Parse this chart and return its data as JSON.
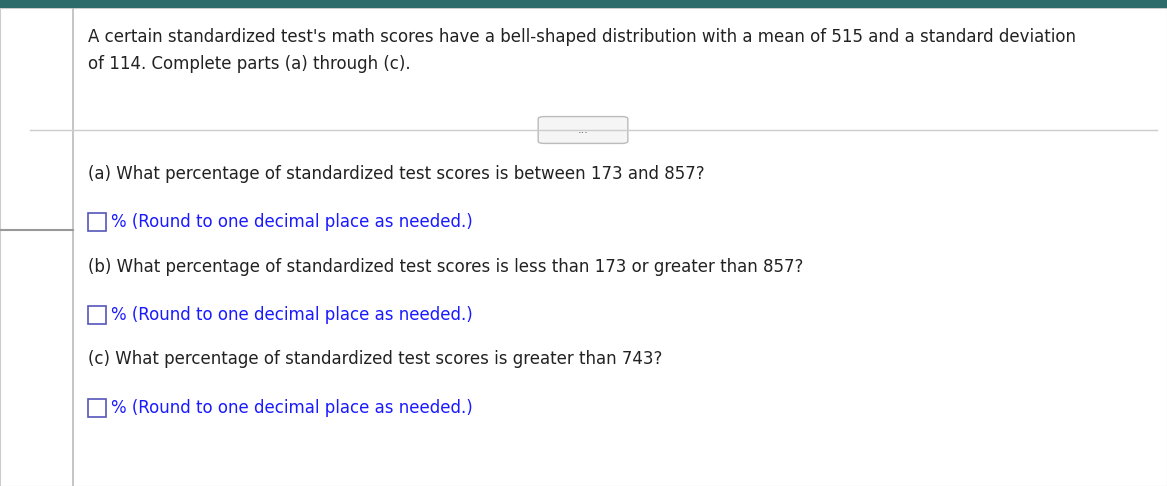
{
  "bg_color": "#ffffff",
  "top_bar_color": "#2d6b6b",
  "left_line_color": "#bbbbbb",
  "intro_text_line1": "A certain standardized test's math scores have a bell-shaped distribution with a mean of 515 and a standard deviation",
  "intro_text_line2": "of 114. Complete parts (a) through (c).",
  "divider_color": "#cccccc",
  "divider_button_text": "...",
  "divider_button_color": "#f5f5f5",
  "divider_button_border": "#bbbbbb",
  "q_a_text": "(a) What percentage of standardized test scores is between 173 and 857?",
  "q_b_text": "(b) What percentage of standardized test scores is less than 173 or greater than 857?",
  "q_c_text": "(c) What percentage of standardized test scores is greater than 743?",
  "answer_hint_text": "% (Round to one decimal place as needed.)",
  "answer_hint_color": "#1a1aff",
  "checkbox_border_color": "#5555bb",
  "text_color": "#222222",
  "body_fontsize": 12.0,
  "hint_fontsize": 12.0,
  "left_dash_color": "#999999",
  "outer_border_color": "#cccccc"
}
